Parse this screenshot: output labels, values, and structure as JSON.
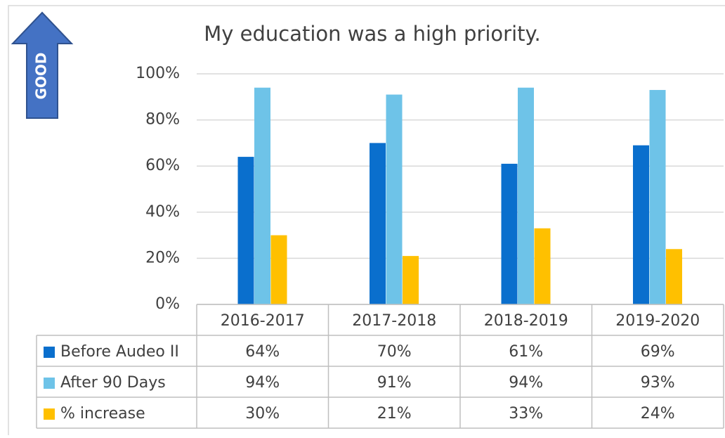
{
  "chart_data": {
    "type": "bar",
    "title": "My education was a high priority.",
    "annotation": "GOOD",
    "categories": [
      "2016-2017",
      "2017-2018",
      "2018-2019",
      "2019-2020"
    ],
    "series": [
      {
        "name": "Before Audeo II",
        "color": "#0a6fcd",
        "values": [
          64,
          70,
          61,
          69
        ],
        "value_labels": [
          "64%",
          "70%",
          "61%",
          "69%"
        ]
      },
      {
        "name": "After 90 Days",
        "color": "#6ec3e8",
        "values": [
          94,
          91,
          94,
          93
        ],
        "value_labels": [
          "94%",
          "91%",
          "94%",
          "93%"
        ]
      },
      {
        "name": "% increase",
        "color": "#ffc000",
        "values": [
          30,
          21,
          33,
          24
        ],
        "value_labels": [
          "30%",
          "21%",
          "33%",
          "24%"
        ]
      }
    ],
    "ylim": [
      0,
      100
    ],
    "yticks": [
      {
        "value": 0,
        "label": "0%"
      },
      {
        "value": 20,
        "label": "20%"
      },
      {
        "value": 40,
        "label": "40%"
      },
      {
        "value": 60,
        "label": "60%"
      },
      {
        "value": 80,
        "label": "80%"
      },
      {
        "value": 100,
        "label": "100%"
      }
    ],
    "grid": true
  }
}
